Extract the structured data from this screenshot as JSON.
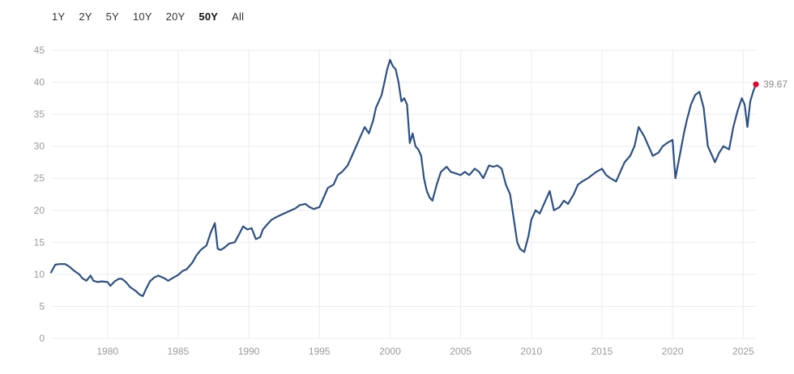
{
  "range_selector": {
    "options": [
      "1Y",
      "2Y",
      "5Y",
      "10Y",
      "20Y",
      "50Y",
      "All"
    ],
    "selected": "50Y"
  },
  "chart_data": {
    "type": "line",
    "title": "",
    "xlabel": "",
    "ylabel": "",
    "xlim": [
      1976.0,
      2025.9
    ],
    "ylim": [
      0,
      45
    ],
    "y_ticks": [
      0,
      5,
      10,
      15,
      20,
      25,
      30,
      35,
      40,
      45
    ],
    "x_ticks": [
      1980,
      1985,
      1990,
      1995,
      2000,
      2005,
      2010,
      2015,
      2020,
      2025
    ],
    "grid": true,
    "line_color": "#2c5085",
    "marker_color": "#e8002d",
    "last_value_label": "39.67",
    "series": [
      {
        "x": [
          1976.0,
          1976.3,
          1976.6,
          1977.0,
          1977.3,
          1977.6,
          1978.0,
          1978.2,
          1978.5,
          1978.8,
          1979.0,
          1979.3,
          1979.6,
          1980.0,
          1980.2,
          1980.5,
          1980.8,
          1981.0,
          1981.3,
          1981.6,
          1982.0,
          1982.3,
          1982.5,
          1982.7,
          1983.0,
          1983.3,
          1983.6,
          1984.0,
          1984.3,
          1984.6,
          1985.0,
          1985.3,
          1985.6,
          1986.0,
          1986.3,
          1986.6,
          1987.0,
          1987.3,
          1987.6,
          1987.8,
          1988.0,
          1988.3,
          1988.6,
          1989.0,
          1989.3,
          1989.6,
          1989.9,
          1990.2,
          1990.5,
          1990.8,
          1991.0,
          1991.3,
          1991.6,
          1992.0,
          1992.3,
          1992.6,
          1993.0,
          1993.3,
          1993.6,
          1994.0,
          1994.3,
          1994.6,
          1995.0,
          1995.3,
          1995.6,
          1996.0,
          1996.3,
          1996.6,
          1997.0,
          1997.3,
          1997.6,
          1997.9,
          1998.2,
          1998.5,
          1998.8,
          1999.0,
          1999.2,
          1999.4,
          1999.6,
          1999.8,
          2000.0,
          2000.2,
          2000.4,
          2000.6,
          2000.8,
          2001.0,
          2001.2,
          2001.4,
          2001.6,
          2001.8,
          2002.0,
          2002.2,
          2002.4,
          2002.6,
          2002.8,
          2003.0,
          2003.3,
          2003.6,
          2004.0,
          2004.3,
          2004.6,
          2005.0,
          2005.3,
          2005.6,
          2006.0,
          2006.3,
          2006.6,
          2007.0,
          2007.3,
          2007.6,
          2007.9,
          2008.2,
          2008.5,
          2008.8,
          2009.0,
          2009.2,
          2009.5,
          2009.8,
          2010.0,
          2010.3,
          2010.6,
          2011.0,
          2011.3,
          2011.6,
          2012.0,
          2012.3,
          2012.6,
          2013.0,
          2013.3,
          2013.6,
          2014.0,
          2014.3,
          2014.6,
          2015.0,
          2015.3,
          2015.6,
          2016.0,
          2016.3,
          2016.6,
          2017.0,
          2017.3,
          2017.6,
          2018.0,
          2018.3,
          2018.6,
          2019.0,
          2019.3,
          2019.6,
          2020.0,
          2020.2,
          2020.5,
          2020.8,
          2021.0,
          2021.3,
          2021.6,
          2021.9,
          2022.2,
          2022.5,
          2022.8,
          2023.0,
          2023.3,
          2023.6,
          2024.0,
          2024.3,
          2024.6,
          2024.9,
          2025.1,
          2025.3,
          2025.5,
          2025.7,
          2025.9
        ],
        "y": [
          10.3,
          11.5,
          11.6,
          11.6,
          11.2,
          10.6,
          10.0,
          9.4,
          9.0,
          9.8,
          9.0,
          8.8,
          8.9,
          8.8,
          8.2,
          8.9,
          9.3,
          9.3,
          8.8,
          8.0,
          7.4,
          6.8,
          6.6,
          7.6,
          8.9,
          9.5,
          9.8,
          9.4,
          9.0,
          9.4,
          9.9,
          10.5,
          10.8,
          11.8,
          13.0,
          13.8,
          14.5,
          16.5,
          18.0,
          14.0,
          13.8,
          14.2,
          14.8,
          15.0,
          16.2,
          17.5,
          17.0,
          17.2,
          15.5,
          15.8,
          17.0,
          17.8,
          18.5,
          19.0,
          19.3,
          19.6,
          20.0,
          20.3,
          20.8,
          21.0,
          20.5,
          20.2,
          20.5,
          22.0,
          23.5,
          24.0,
          25.5,
          26.0,
          27.0,
          28.5,
          30.0,
          31.5,
          33.0,
          32.0,
          34.0,
          36.0,
          37.0,
          38.0,
          40.0,
          42.0,
          43.5,
          42.5,
          42.0,
          40.0,
          37.0,
          37.5,
          36.5,
          30.5,
          32.0,
          30.0,
          29.5,
          28.5,
          25.0,
          23.0,
          22.0,
          21.5,
          24.0,
          26.0,
          26.8,
          26.0,
          25.8,
          25.5,
          26.0,
          25.5,
          26.5,
          26.0,
          25.0,
          27.0,
          26.8,
          27.0,
          26.5,
          24.0,
          22.5,
          18.0,
          15.0,
          14.0,
          13.5,
          16.0,
          18.5,
          20.0,
          19.5,
          21.5,
          23.0,
          20.0,
          20.5,
          21.5,
          21.0,
          22.5,
          24.0,
          24.5,
          25.0,
          25.5,
          26.0,
          26.5,
          25.5,
          25.0,
          24.5,
          26.0,
          27.5,
          28.5,
          30.0,
          33.0,
          31.5,
          30.0,
          28.5,
          29.0,
          30.0,
          30.5,
          31.0,
          25.0,
          28.5,
          32.0,
          34.0,
          36.5,
          38.0,
          38.5,
          36.0,
          30.0,
          28.5,
          27.5,
          29.0,
          30.0,
          29.5,
          33.0,
          35.5,
          37.5,
          36.5,
          33.0,
          37.0,
          38.5,
          39.67
        ]
      }
    ]
  }
}
